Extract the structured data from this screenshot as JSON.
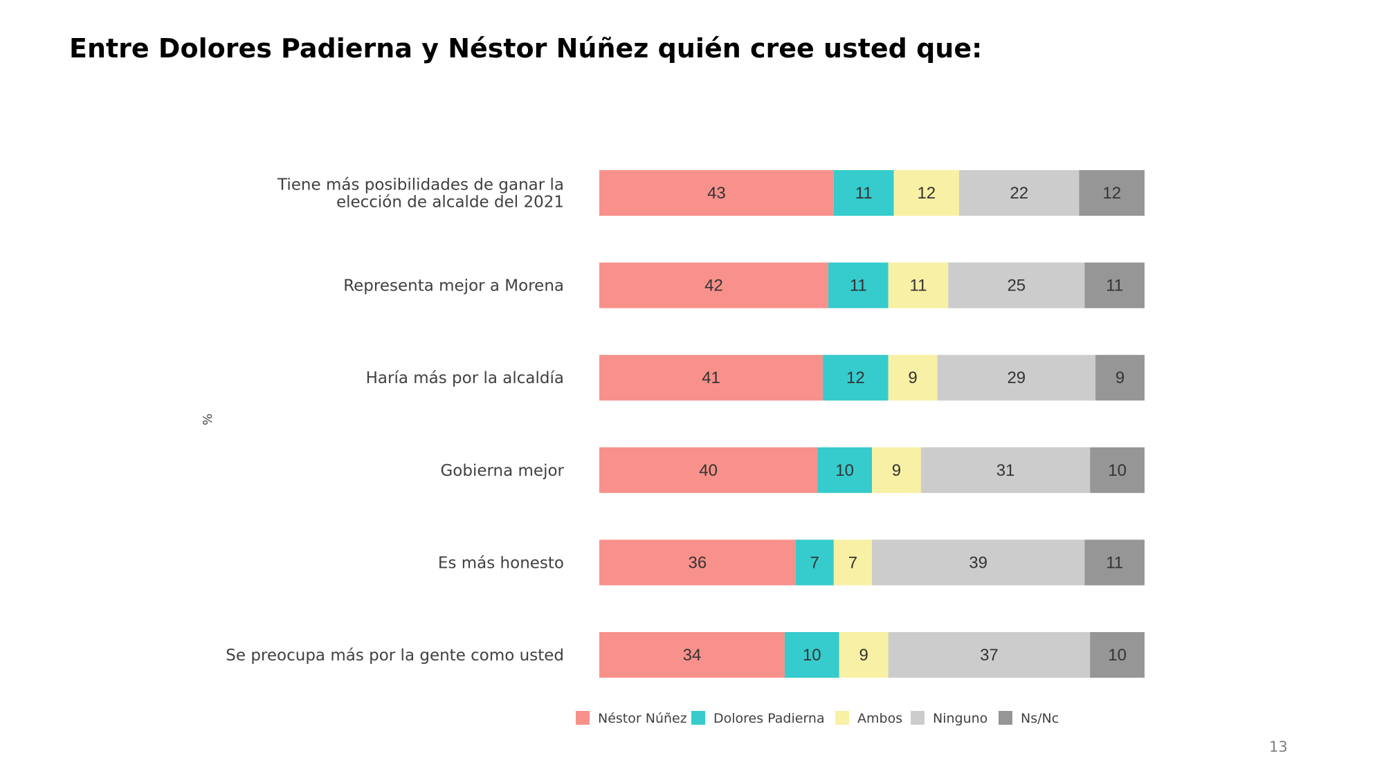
{
  "slide": {
    "title": "Entre Dolores Padierna y Néstor Núñez quién cree usted que:",
    "unit": "%",
    "page_number": "13"
  },
  "chart_data": {
    "type": "bar",
    "orientation": "horizontal",
    "stacked": true,
    "percent_stacked": true,
    "title": "",
    "xlabel": "",
    "ylabel": "%",
    "grid": false,
    "legend_position": "bottom",
    "categories": [
      "Tiene más posibilidades de ganar la elección de alcalde del 2021",
      "Representa mejor a Morena",
      "Haría más por la alcaldía",
      "Gobierna mejor",
      "Es más honesto",
      "Se preocupa más por la gente como usted"
    ],
    "category_lines": [
      [
        "Tiene más posibilidades de ganar la",
        "elección de alcalde del 2021"
      ],
      [
        "Representa mejor a Morena"
      ],
      [
        "Haría más por la alcaldía"
      ],
      [
        "Gobierna mejor"
      ],
      [
        "Es más honesto"
      ],
      [
        "Se preocupa más por la gente como usted"
      ]
    ],
    "series": [
      {
        "name": "Néstor Núñez",
        "color": "#f8918b",
        "values": [
          43,
          42,
          41,
          40,
          36,
          34
        ]
      },
      {
        "name": "Dolores Padierna",
        "color": "#36cbcc",
        "values": [
          11,
          11,
          12,
          10,
          7,
          10
        ]
      },
      {
        "name": "Ambos",
        "color": "#f8f0a4",
        "values": [
          12,
          11,
          9,
          9,
          7,
          9
        ]
      },
      {
        "name": "Ninguno",
        "color": "#cccccc",
        "values": [
          22,
          25,
          29,
          31,
          39,
          37
        ]
      },
      {
        "name": "Ns/Nc",
        "color": "#969696",
        "values": [
          12,
          11,
          9,
          10,
          11,
          10
        ]
      }
    ]
  }
}
